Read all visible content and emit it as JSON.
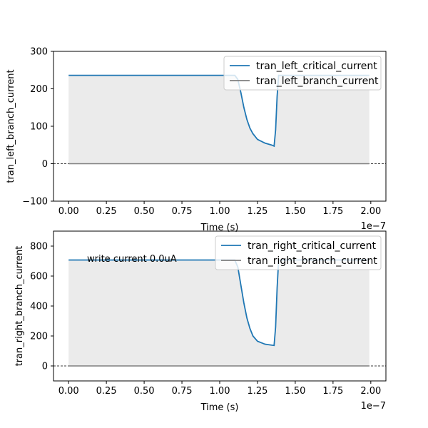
{
  "chart_data": [
    {
      "type": "line",
      "title": "",
      "xlabel": "Time (s)",
      "ylabel": "tran_left_branch_current",
      "x_offset_label": "1e−7",
      "xlim": [
        -0.1,
        2.1
      ],
      "ylim": [
        -100,
        300
      ],
      "x_ticks": [
        "0.00",
        "0.25",
        "0.50",
        "0.75",
        "1.00",
        "1.25",
        "1.50",
        "1.75",
        "2.00"
      ],
      "y_ticks": [
        "−100",
        "0",
        "100",
        "200",
        "300"
      ],
      "x_tick_values": [
        0,
        0.25,
        0.5,
        0.75,
        1.0,
        1.25,
        1.5,
        1.75,
        2.0
      ],
      "y_tick_values": [
        -100,
        0,
        100,
        200,
        300
      ],
      "legend_position": "upper right",
      "annotation": "",
      "series": [
        {
          "name": "tran_left_critical_current",
          "color": "#1f77b4",
          "x": [
            0,
            1.05,
            1.1,
            1.12,
            1.14,
            1.16,
            1.18,
            1.2,
            1.22,
            1.25,
            1.3,
            1.35,
            1.36,
            1.37,
            1.38,
            1.39,
            1.4,
            1.45,
            1.5,
            1.99
          ],
          "y": [
            236,
            236,
            236,
            225,
            190,
            150,
            118,
            95,
            80,
            65,
            55,
            49,
            47,
            90,
            180,
            236,
            236,
            236,
            236,
            236
          ]
        },
        {
          "name": "tran_left_branch_current",
          "color": "#7f7f7f",
          "x": [
            0,
            1.99
          ],
          "y": [
            0,
            0
          ]
        }
      ],
      "shade": {
        "x": [
          0,
          1.99
        ],
        "upper_series": "tran_left_critical_current",
        "lower": 0,
        "color": "#ebebeb"
      },
      "hline": {
        "y": 0,
        "style": "dashed"
      }
    },
    {
      "type": "line",
      "title": "",
      "xlabel": "Time (s)",
      "ylabel": "tran_right_branch_current",
      "x_offset_label": "1e−7",
      "xlim": [
        -0.1,
        2.1
      ],
      "ylim": [
        -100,
        900
      ],
      "x_ticks": [
        "0.00",
        "0.25",
        "0.50",
        "0.75",
        "1.00",
        "1.25",
        "1.50",
        "1.75",
        "2.00"
      ],
      "y_ticks": [
        "0",
        "200",
        "400",
        "600",
        "800"
      ],
      "x_tick_values": [
        0,
        0.25,
        0.5,
        0.75,
        1.0,
        1.25,
        1.5,
        1.75,
        2.0
      ],
      "y_tick_values": [
        0,
        200,
        400,
        600,
        800
      ],
      "legend_position": "upper right",
      "annotation": "write current 0.0uA",
      "series": [
        {
          "name": "tran_right_critical_current",
          "color": "#1f77b4",
          "x": [
            0,
            1.05,
            1.1,
            1.12,
            1.14,
            1.16,
            1.18,
            1.2,
            1.22,
            1.25,
            1.3,
            1.35,
            1.36,
            1.37,
            1.38,
            1.39,
            1.4,
            1.45,
            1.5,
            1.99
          ],
          "y": [
            707,
            707,
            707,
            660,
            540,
            420,
            320,
            250,
            200,
            165,
            145,
            138,
            137,
            260,
            520,
            707,
            707,
            707,
            707,
            707
          ]
        },
        {
          "name": "tran_right_branch_current",
          "color": "#7f7f7f",
          "x": [
            0,
            1.99
          ],
          "y": [
            0,
            0
          ]
        }
      ],
      "shade": {
        "x": [
          0,
          1.99
        ],
        "upper_series": "tran_right_critical_current",
        "lower": 0,
        "color": "#ebebeb"
      },
      "hline": {
        "y": 0,
        "style": "dashed"
      }
    }
  ]
}
